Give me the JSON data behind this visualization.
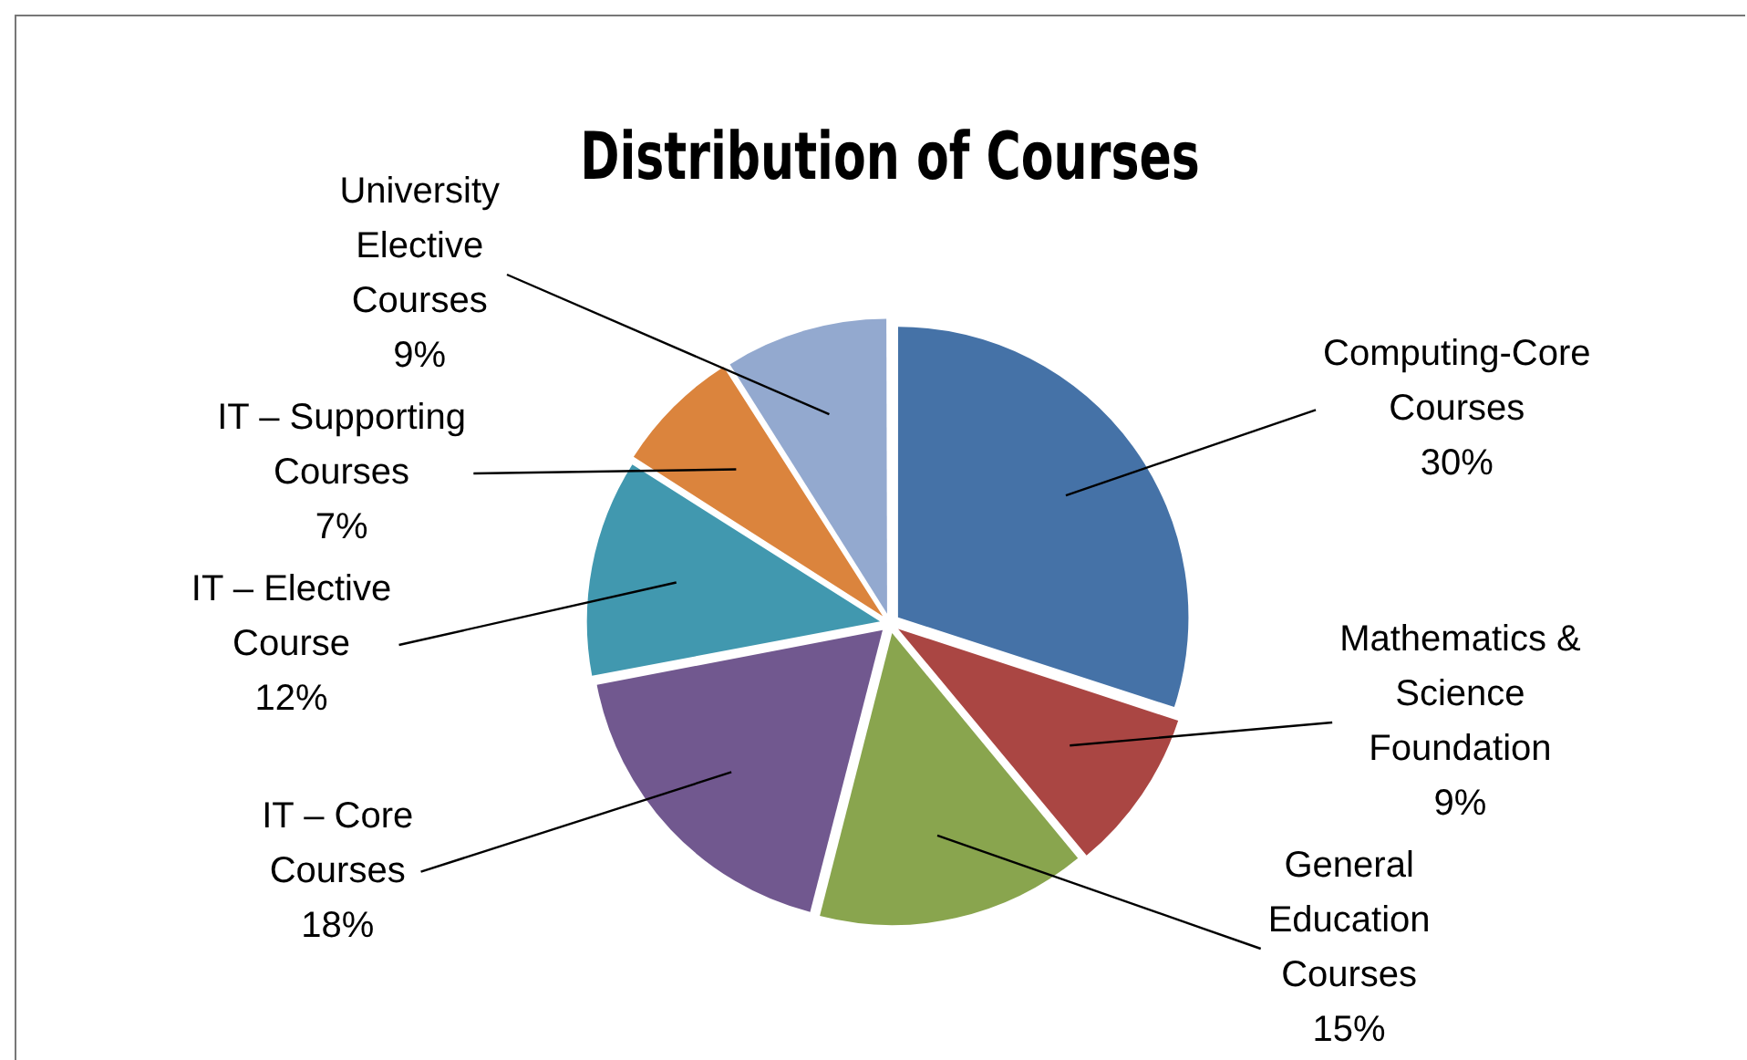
{
  "chart_data": {
    "type": "pie",
    "title": "Distribution of Courses",
    "categories": [
      "Computing-Core Courses",
      "Mathematics & Science Foundation",
      "General Education Courses",
      "IT – Core Courses",
      "IT – Elective Course",
      "IT – Supporting Courses",
      "University Elective Courses"
    ],
    "values": [
      30,
      9,
      15,
      18,
      12,
      7,
      9
    ],
    "value_labels": [
      "30%",
      "9%",
      "15%",
      "18%",
      "12%",
      "7%",
      "9%"
    ],
    "colors": [
      "#4572a7",
      "#aa4643",
      "#89a54e",
      "#71588f",
      "#4198af",
      "#db843d",
      "#93a9cf"
    ],
    "legend": false
  }
}
